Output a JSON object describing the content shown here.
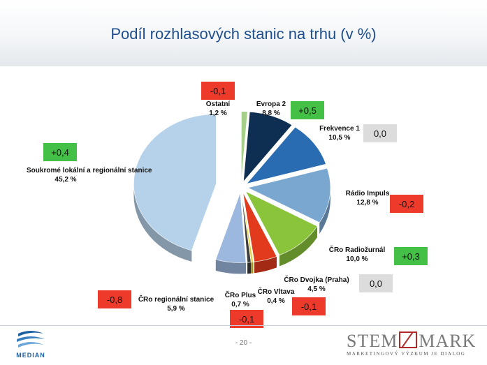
{
  "title": "Podíl rozhlasových stanic na trhu (v %)",
  "page_number": "- 20 -",
  "logos": {
    "median": "MEDIAN",
    "stem_left": "STEM",
    "stem_right": "MARK",
    "stem_tagline": "MARKETINGOVÝ VÝZKUM JE DIALOG"
  },
  "colors": {
    "title": "#1f4f8f",
    "increase": "#44c046",
    "decrease": "#ee3a2a",
    "unchanged": "#dcdcdc"
  },
  "chart_data": {
    "type": "pie",
    "title": "Podíl rozhlasových stanic na trhu (v %)",
    "unit": "%",
    "slices": [
      {
        "label": "Ostatní",
        "value": 1.2,
        "value_label": "1,2 %",
        "change": "-0,1",
        "change_type": "decrease",
        "color": "#a6d08a"
      },
      {
        "label": "Evropa 2",
        "value": 8.8,
        "value_label": "8,8 %",
        "change": "+0,5",
        "change_type": "increase",
        "color": "#0f2f52"
      },
      {
        "label": "Frekvence 1",
        "value": 10.5,
        "value_label": "10,5 %",
        "change": "0,0",
        "change_type": "unchanged",
        "color": "#2a6cb1"
      },
      {
        "label": "Rádio Impuls",
        "value": 12.8,
        "value_label": "12,8 %",
        "change": "-0,2",
        "change_type": "decrease",
        "color": "#7aa7cf"
      },
      {
        "label": "ČRo Radiožurnál",
        "value": 10.0,
        "value_label": "10,0 %",
        "change": "+0,3",
        "change_type": "increase",
        "color": "#8ac43a"
      },
      {
        "label": "ČRo Dvojka (Praha)",
        "value": 4.5,
        "value_label": "4,5 %",
        "change": "0,0",
        "change_type": "unchanged",
        "color": "#e23a1c"
      },
      {
        "label": "ČRo Vltava",
        "value": 0.4,
        "value_label": "0,4 %",
        "change": "-0,1",
        "change_type": "decrease",
        "color": "#e6cf2a"
      },
      {
        "label": "ČRo Plus",
        "value": 0.7,
        "value_label": "0,7 %",
        "change": "-0,1",
        "change_type": "decrease",
        "color": "#3d3d3d"
      },
      {
        "label": "ČRo regionální stanice",
        "value": 5.9,
        "value_label": "5,9 %",
        "change": "-0,8",
        "change_type": "decrease",
        "color": "#9db8de"
      },
      {
        "label": "Soukromé lokální a regionální stanice",
        "value": 45.2,
        "value_label": "45,2 %",
        "change": "+0,4",
        "change_type": "increase",
        "color": "#b6d2ea"
      }
    ]
  }
}
